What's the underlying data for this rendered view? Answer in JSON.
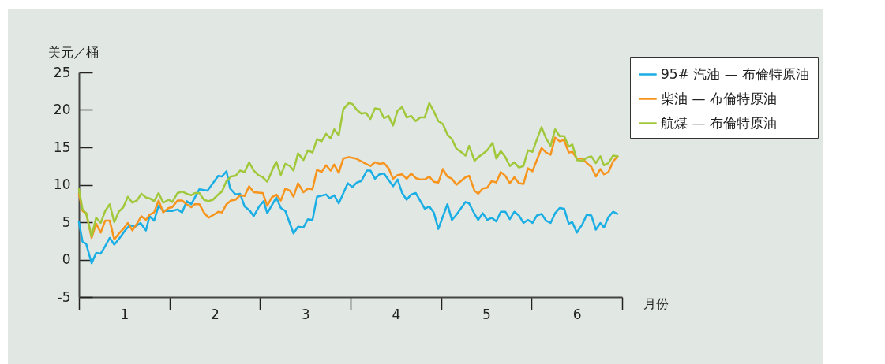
{
  "chart_data": {
    "type": "line",
    "ylabel": "美元／桶",
    "xlabel": "月份",
    "xlim": [
      0,
      6
    ],
    "ylim": [
      -5,
      25
    ],
    "yticks": [
      -5,
      0,
      5,
      10,
      15,
      20,
      25
    ],
    "xticks": [
      {
        "value": 0,
        "label": null
      },
      {
        "value": 0.5,
        "label": "1"
      },
      {
        "value": 1,
        "label": null
      },
      {
        "value": 1.5,
        "label": "2"
      },
      {
        "value": 2,
        "label": null
      },
      {
        "value": 2.5,
        "label": "3"
      },
      {
        "value": 3,
        "label": null
      },
      {
        "value": 3.5,
        "label": "4"
      },
      {
        "value": 4,
        "label": null
      },
      {
        "value": 4.5,
        "label": "5"
      },
      {
        "value": 5,
        "label": null
      },
      {
        "value": 5.5,
        "label": "6"
      },
      {
        "value": 6,
        "label": null
      }
    ],
    "grid": false,
    "legend": "top right",
    "marker": "none",
    "line_style": "solid",
    "series": [
      {
        "name": "95# 汽油 — 布倫特原油",
        "color": "#1aaee5",
        "x": [
          0,
          0.04,
          0.08,
          0.14,
          0.19,
          0.24,
          0.29,
          0.34,
          0.39,
          0.45,
          0.51,
          0.56,
          0.62,
          0.68,
          0.74,
          0.78,
          0.83,
          0.88,
          0.94,
          1.03,
          1.09,
          1.14,
          1.19,
          1.24,
          1.33,
          1.42,
          1.48,
          1.54,
          1.58,
          1.63,
          1.67,
          1.73,
          1.78,
          1.83,
          1.89,
          1.93,
          1.99,
          2.04,
          2.08,
          2.18,
          2.23,
          2.28,
          2.37,
          2.42,
          2.48,
          2.53,
          2.58,
          2.63,
          2.73,
          2.77,
          2.82,
          2.87,
          2.97,
          3.02,
          3.07,
          3.12,
          3.18,
          3.22,
          3.27,
          3.32,
          3.37,
          3.47,
          3.52,
          3.57,
          3.62,
          3.67,
          3.72,
          3.82,
          3.87,
          3.92,
          3.97,
          4.07,
          4.12,
          4.17,
          4.27,
          4.31,
          4.37,
          4.41,
          4.46,
          4.51,
          4.56,
          4.61,
          4.66,
          4.71,
          4.76,
          4.81,
          4.86,
          4.91,
          4.96,
          5.01,
          5.06,
          5.11,
          5.16,
          5.21,
          5.26,
          5.31,
          5.36,
          5.41,
          5.45,
          5.5,
          5.56,
          5.61,
          5.66,
          5.71,
          5.76,
          5.8,
          5.85,
          5.9,
          5.95
        ],
        "values": [
          5,
          2.4,
          2.1,
          -0.5,
          0.9,
          0.8,
          1.8,
          2.9,
          2,
          2.9,
          3.9,
          4.6,
          4.4,
          4.9,
          3.9,
          5.8,
          5.2,
          7.2,
          6.5,
          6.5,
          6.7,
          6.3,
          7.8,
          7.4,
          9.4,
          9.2,
          10.2,
          11.2,
          11.1,
          11.8,
          9.5,
          8.7,
          8.8,
          7.1,
          6.5,
          5.8,
          7.1,
          7.8,
          6.2,
          8.3,
          6.9,
          6.5,
          3.5,
          4.4,
          4.3,
          5.4,
          5.3,
          8.4,
          8.7,
          8.2,
          8.6,
          7.5,
          10.2,
          9.7,
          10.3,
          10.5,
          11.9,
          11.9,
          10.8,
          11.4,
          11.5,
          9.8,
          10.7,
          8.9,
          8,
          8.7,
          8.9,
          6.8,
          7.1,
          6.3,
          4.1,
          7.4,
          5.3,
          6,
          7.7,
          7.5,
          6.1,
          5.3,
          6.2,
          5.3,
          5.6,
          5.1,
          6.4,
          6.4,
          5.4,
          6.4,
          5.9,
          4.9,
          5.3,
          4.9,
          5.9,
          6.1,
          5.2,
          4.9,
          6.2,
          6.9,
          6.8,
          4.8,
          5,
          3.6,
          4.7,
          6,
          5.9,
          4,
          4.9,
          4.3,
          5.7,
          6.4,
          6.1
        ]
      },
      {
        "name": "柴油 — 布倫特原油",
        "color": "#f7941d",
        "x": [
          0,
          0.04,
          0.08,
          0.14,
          0.19,
          0.24,
          0.29,
          0.34,
          0.39,
          0.45,
          0.49,
          0.54,
          0.59,
          0.64,
          0.69,
          0.74,
          0.78,
          0.83,
          0.88,
          0.93,
          0.99,
          1.03,
          1.09,
          1.14,
          1.19,
          1.24,
          1.28,
          1.33,
          1.38,
          1.43,
          1.49,
          1.54,
          1.58,
          1.63,
          1.68,
          1.73,
          1.78,
          1.83,
          1.88,
          1.93,
          2.03,
          2.08,
          2.13,
          2.18,
          2.23,
          2.28,
          2.33,
          2.37,
          2.42,
          2.48,
          2.53,
          2.58,
          2.63,
          2.68,
          2.73,
          2.78,
          2.82,
          2.87,
          2.92,
          2.98,
          3.06,
          3.17,
          3.22,
          3.27,
          3.32,
          3.37,
          3.42,
          3.47,
          3.52,
          3.57,
          3.62,
          3.67,
          3.72,
          3.77,
          3.82,
          3.87,
          3.92,
          3.97,
          4.02,
          4.07,
          4.12,
          4.17,
          4.27,
          4.31,
          4.37,
          4.41,
          4.46,
          4.51,
          4.56,
          4.61,
          4.66,
          4.71,
          4.76,
          4.81,
          4.86,
          4.91,
          4.96,
          5.01,
          5.11,
          5.16,
          5.21,
          5.26,
          5.31,
          5.36,
          5.41,
          5.45,
          5.5,
          5.56,
          5.61,
          5.66,
          5.71,
          5.76,
          5.8,
          5.85,
          5.9,
          5.95
        ],
        "values": [
          8.8,
          6.5,
          6.2,
          2.9,
          4.8,
          3.6,
          5.2,
          5.2,
          2.7,
          3.6,
          4.1,
          4.9,
          3.9,
          4.8,
          5.8,
          5.3,
          6,
          6.3,
          7.9,
          6.3,
          6.9,
          7,
          7.9,
          7.9,
          7.4,
          7,
          7.4,
          7.4,
          6.3,
          5.6,
          6,
          6.4,
          6.3,
          7.4,
          7.9,
          8,
          8.6,
          8.5,
          9.8,
          9,
          8.9,
          7.2,
          8.3,
          8.7,
          7.9,
          9.5,
          9.2,
          8.4,
          10.2,
          9,
          9.5,
          9.4,
          12,
          11.7,
          12.6,
          11.9,
          12.7,
          11.6,
          13.5,
          13.7,
          13.5,
          12.8,
          12.5,
          13,
          12.8,
          12.9,
          12.2,
          10.8,
          11.3,
          11.4,
          10.8,
          11.5,
          10.9,
          10.7,
          10.7,
          11.1,
          10.4,
          10.3,
          12.1,
          11.1,
          10.8,
          10,
          11,
          11.2,
          9.2,
          8.8,
          9.5,
          9.6,
          10.5,
          10.3,
          11.7,
          11.2,
          10.2,
          11,
          10.2,
          10.1,
          12.2,
          11.8,
          14.9,
          14.3,
          14,
          16.3,
          15.8,
          16,
          14.3,
          14.4,
          13.5,
          13.5,
          12.9,
          12.4,
          11.1,
          12.1,
          11.4,
          11.7,
          13.1,
          13.8
        ]
      },
      {
        "name": "航煤 — 布倫特原油",
        "color": "#a0c83a",
        "x": [
          0,
          0.04,
          0.08,
          0.14,
          0.19,
          0.24,
          0.29,
          0.34,
          0.39,
          0.44,
          0.49,
          0.54,
          0.59,
          0.64,
          0.69,
          0.74,
          0.78,
          0.83,
          0.88,
          0.93,
          0.99,
          1.03,
          1.09,
          1.14,
          1.19,
          1.24,
          1.28,
          1.33,
          1.38,
          1.43,
          1.48,
          1.53,
          1.58,
          1.63,
          1.68,
          1.73,
          1.78,
          1.83,
          1.88,
          1.93,
          1.98,
          2.03,
          2.08,
          2.13,
          2.18,
          2.23,
          2.28,
          2.33,
          2.37,
          2.42,
          2.48,
          2.53,
          2.58,
          2.63,
          2.68,
          2.73,
          2.78,
          2.82,
          2.87,
          2.92,
          2.98,
          3.02,
          3.07,
          3.12,
          3.17,
          3.22,
          3.27,
          3.32,
          3.37,
          3.42,
          3.47,
          3.52,
          3.57,
          3.62,
          3.67,
          3.72,
          3.77,
          3.82,
          3.87,
          3.92,
          3.97,
          4.02,
          4.07,
          4.12,
          4.17,
          4.22,
          4.27,
          4.31,
          4.37,
          4.41,
          4.46,
          4.51,
          4.57,
          4.61,
          4.66,
          4.71,
          4.76,
          4.81,
          4.86,
          4.91,
          4.96,
          5.01,
          5.06,
          5.11,
          5.16,
          5.21,
          5.26,
          5.31,
          5.36,
          5.41,
          5.45,
          5.5,
          5.56,
          5.61,
          5.66,
          5.71,
          5.76,
          5.8,
          5.85,
          5.9,
          5.95
        ],
        "values": [
          9.4,
          6.7,
          6.2,
          3.1,
          5.6,
          4.9,
          6.5,
          7.4,
          5,
          6.4,
          7,
          8.4,
          7.6,
          7.9,
          8.8,
          8.3,
          8.2,
          7.8,
          8.9,
          7.6,
          8,
          7.7,
          8.9,
          9.1,
          8.8,
          8.6,
          8.9,
          8.9,
          8,
          7.8,
          8,
          8.6,
          9.1,
          10.5,
          11.1,
          11.2,
          11.9,
          11.7,
          13,
          11.9,
          11.3,
          11,
          10.4,
          11.8,
          13.1,
          11.3,
          12.8,
          12.5,
          11.9,
          14.2,
          13.3,
          14.6,
          14.3,
          16.1,
          15.8,
          16.8,
          16.2,
          17.4,
          16.6,
          20.1,
          20.9,
          20.8,
          20,
          19.5,
          19.6,
          18.8,
          20.2,
          20.1,
          18.9,
          19.2,
          17.9,
          19.9,
          20.4,
          19,
          19.2,
          18.5,
          19,
          19,
          20.9,
          19.8,
          18.5,
          18.1,
          16.7,
          16.1,
          14.8,
          14.4,
          13.9,
          15.2,
          13.2,
          13.7,
          14.1,
          14.6,
          15.6,
          13.5,
          14.5,
          13.7,
          12.5,
          13,
          12.3,
          12.5,
          14.6,
          14.4,
          16.1,
          17.7,
          16.2,
          15.2,
          17.4,
          16.5,
          16.5,
          15.1,
          15.4,
          13.3,
          13.2,
          13.6,
          13.8,
          12.9,
          13.8,
          12.6,
          12.9,
          13.9,
          13.8
        ]
      }
    ]
  }
}
